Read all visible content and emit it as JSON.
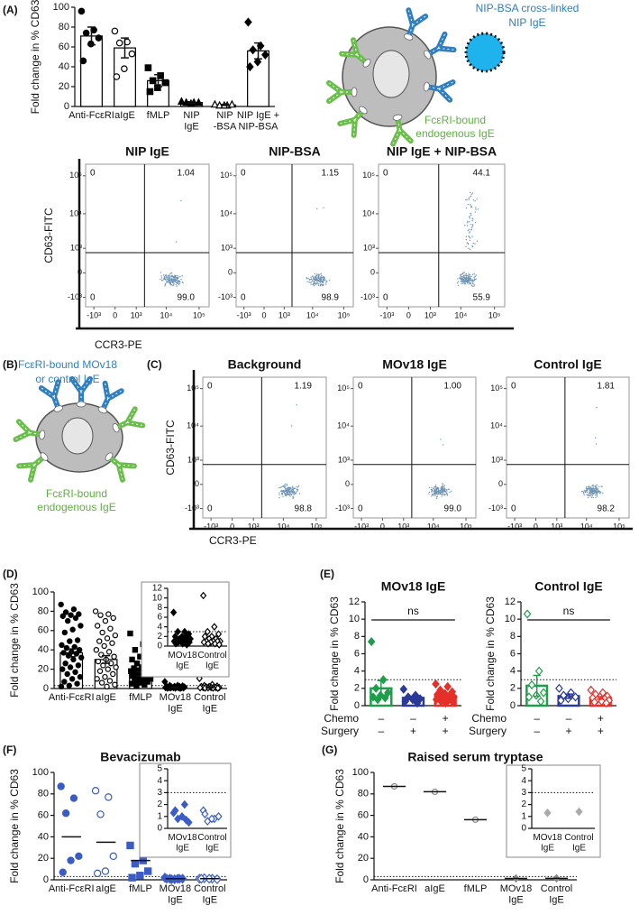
{
  "panel_labels": [
    "(A)",
    "(B)",
    "(C)",
    "(D)",
    "(E)",
    "(F)",
    "(G)"
  ],
  "diagrams": [
    {
      "top": [
        "NIP-BSA cross-linked",
        "NIP IgE"
      ],
      "bottom": [
        "FcεRI-bound",
        "endogenous IgE"
      ]
    },
    {
      "top": [
        "FcεRI-bound MOv18",
        "or control IgE"
      ],
      "bottom": [
        "FcεRI-bound",
        "endogenous IgE"
      ]
    }
  ],
  "chart_data": [
    {
      "type": "bar",
      "ylabel": "Fold change in % CD63",
      "categories": [
        "Anti-FcεRI",
        "aIgE",
        "fMLP",
        "NIP\nIgE",
        "NIP\n-BSA",
        "NIP IgE +\nNIP-BSA"
      ],
      "values": [
        71,
        59,
        26,
        4,
        1.5,
        56
      ],
      "errors": [
        9,
        10,
        6,
        0.8,
        0.5,
        8
      ],
      "points": [
        [
          96,
          77,
          74,
          69,
          63,
          46
        ],
        [
          76,
          65,
          64,
          53,
          38,
          30
        ],
        [
          39,
          31,
          26,
          24,
          19,
          15
        ],
        [
          5,
          4,
          4,
          4,
          3
        ],
        [
          2,
          1,
          1,
          2,
          1
        ],
        [
          85,
          61,
          57,
          52,
          45,
          40
        ]
      ],
      "markers": [
        "circle",
        "circle-open",
        "square",
        "triangle",
        "triangle-open",
        "diamond"
      ],
      "color": "#000000",
      "ylim": [
        0,
        100
      ],
      "yticks": [
        0,
        20,
        40,
        60,
        80,
        100
      ]
    },
    {
      "type": "flow",
      "title": "NIP IgE",
      "ylabel": "CD63-FITC",
      "xlabel": "CCR3-PE",
      "scale": "biexponential",
      "values": [
        0,
        1.04,
        0,
        99
      ],
      "value_labels": [
        "0",
        "1.04",
        "0",
        "99.0"
      ],
      "gates": [
        2000,
        700
      ],
      "xlim": [
        -2000,
        200000
      ],
      "ylim": [
        -2000,
        200000
      ],
      "xticks": [
        {
          "value": -1000,
          "label": "-10³"
        },
        0,
        {
          "value": 1000,
          "label": "10³"
        },
        {
          "value": 10000,
          "label": "10⁴"
        },
        {
          "value": 100000,
          "label": "10⁵"
        }
      ],
      "yticks": [
        {
          "value": -1000,
          "label": "-10³"
        },
        0,
        {
          "value": 1000,
          "label": "10³"
        },
        {
          "value": 10000,
          "label": "10⁴"
        },
        {
          "value": 100000,
          "label": "10⁵"
        }
      ]
    },
    {
      "type": "flow",
      "title": "NIP-BSA",
      "scale": "biexponential",
      "values": [
        0,
        1.15,
        0,
        98.9
      ],
      "value_labels": [
        "0",
        "1.15",
        "0",
        "98.9"
      ],
      "gates": [
        2000,
        700
      ],
      "xlim": [
        -2000,
        200000
      ],
      "ylim": [
        -2000,
        200000
      ],
      "xticks": [
        {
          "value": -1000,
          "label": "-10³"
        },
        0,
        {
          "value": 1000,
          "label": "10³"
        },
        {
          "value": 10000,
          "label": "10⁴"
        },
        {
          "value": 100000,
          "label": "10⁵"
        }
      ],
      "yticks": [
        {
          "value": -1000,
          "label": "-10³"
        },
        0,
        {
          "value": 1000,
          "label": "10³"
        },
        {
          "value": 10000,
          "label": "10⁴"
        },
        {
          "value": 100000,
          "label": "10⁵"
        }
      ]
    },
    {
      "type": "flow",
      "title": "NIP IgE + NIP-BSA",
      "scale": "biexponential",
      "values": [
        0,
        44.1,
        0,
        55.9
      ],
      "value_labels": [
        "0",
        "44.1",
        "0",
        "55.9"
      ],
      "gates": [
        2000,
        700
      ],
      "xlim": [
        -2000,
        200000
      ],
      "ylim": [
        -2000,
        200000
      ],
      "xticks": [
        {
          "value": -1000,
          "label": "-10³"
        },
        0,
        {
          "value": 1000,
          "label": "10³"
        },
        {
          "value": 10000,
          "label": "10⁴"
        },
        {
          "value": 100000,
          "label": "10⁵"
        }
      ],
      "yticks": [
        {
          "value": -1000,
          "label": "-10³"
        },
        0,
        {
          "value": 1000,
          "label": "10³"
        },
        {
          "value": 10000,
          "label": "10⁴"
        },
        {
          "value": 100000,
          "label": "10⁵"
        }
      ]
    },
    {
      "type": "flow",
      "title": "Background",
      "ylabel": "CD63-FITC",
      "xlabel": "CCR3-PE",
      "scale": "biexponential",
      "values": [
        0,
        1.19,
        0,
        98.8
      ],
      "value_labels": [
        "0",
        "1.19",
        "0",
        "98.8"
      ],
      "gates": [
        2000,
        700
      ],
      "xlim": [
        -2000,
        200000
      ],
      "ylim": [
        -2000,
        200000
      ],
      "xticks": [
        {
          "value": -1000,
          "label": "-10³"
        },
        0,
        {
          "value": 1000,
          "label": "10³"
        },
        {
          "value": 10000,
          "label": "10⁴"
        },
        {
          "value": 100000,
          "label": "10⁵"
        }
      ],
      "yticks": [
        {
          "value": -1000,
          "label": "-10³"
        },
        0,
        {
          "value": 1000,
          "label": "10³"
        },
        {
          "value": 10000,
          "label": "10⁴"
        },
        {
          "value": 100000,
          "label": "10⁵"
        }
      ]
    },
    {
      "type": "flow",
      "title": "MOv18 IgE",
      "scale": "biexponential",
      "values": [
        0,
        1,
        0,
        99
      ],
      "value_labels": [
        "0",
        "1.00",
        "0",
        "99.0"
      ],
      "gates": [
        2000,
        700
      ],
      "xlim": [
        -2000,
        200000
      ],
      "ylim": [
        -2000,
        200000
      ],
      "xticks": [
        {
          "value": -1000,
          "label": "-10³"
        },
        0,
        {
          "value": 1000,
          "label": "10³"
        },
        {
          "value": 10000,
          "label": "10⁴"
        },
        {
          "value": 100000,
          "label": "10⁵"
        }
      ],
      "yticks": [
        {
          "value": -1000,
          "label": "-10³"
        },
        0,
        {
          "value": 1000,
          "label": "10³"
        },
        {
          "value": 10000,
          "label": "10⁴"
        },
        {
          "value": 100000,
          "label": "10⁵"
        }
      ]
    },
    {
      "type": "flow",
      "title": "Control IgE",
      "scale": "biexponential",
      "values": [
        0,
        1.81,
        0,
        98.2
      ],
      "value_labels": [
        "0",
        "1.81",
        "0",
        "98.2"
      ],
      "gates": [
        2000,
        700
      ],
      "xlim": [
        -2000,
        200000
      ],
      "ylim": [
        -2000,
        200000
      ],
      "xticks": [
        {
          "value": -1000,
          "label": "-10³"
        },
        0,
        {
          "value": 1000,
          "label": "10³"
        },
        {
          "value": 10000,
          "label": "10⁴"
        },
        {
          "value": 100000,
          "label": "10⁵"
        }
      ],
      "yticks": [
        {
          "value": -1000,
          "label": "-10³"
        },
        0,
        {
          "value": 1000,
          "label": "10³"
        },
        {
          "value": 10000,
          "label": "10⁴"
        },
        {
          "value": 100000,
          "label": "10⁵"
        }
      ]
    },
    {
      "type": "bar",
      "ylabel": "Fold change in % CD63",
      "categories": [
        "Anti-FcεRI",
        "aIgE",
        "fMLP",
        "MOv18\nIgE",
        "Control\nIgE"
      ],
      "values": [
        37,
        30,
        15,
        1.2,
        1.2
      ],
      "errors": [
        4,
        4,
        2,
        0.3,
        0.6
      ],
      "points": [
        [
          87,
          82,
          79,
          77,
          76,
          75,
          73,
          70,
          65,
          61,
          58,
          50,
          49,
          45,
          43,
          42,
          40,
          38,
          37,
          36,
          34,
          32,
          30,
          26,
          24,
          22,
          20,
          17,
          15,
          12,
          10,
          7,
          5,
          3,
          2
        ],
        [
          80,
          77,
          76,
          73,
          70,
          65,
          62,
          58,
          55,
          52,
          49,
          47,
          44,
          40,
          38,
          35,
          33,
          30,
          28,
          26,
          24,
          22,
          20,
          18,
          15,
          12,
          10,
          8,
          6,
          4,
          2
        ],
        [
          57,
          46,
          40,
          35,
          33,
          30,
          28,
          26,
          24,
          22,
          21,
          20,
          19,
          18,
          17,
          16,
          15,
          14,
          13,
          12,
          11,
          10,
          9,
          8,
          7,
          6,
          5,
          4,
          3
        ],
        [
          7,
          3,
          3,
          2.5,
          2,
          2,
          2,
          1.5,
          1.5,
          1.5,
          1,
          1,
          1,
          1,
          1,
          0.8,
          0.8,
          0.5,
          0.5,
          0.3
        ],
        [
          10.5,
          4,
          3,
          2.5,
          2,
          2,
          1.5,
          1.5,
          1,
          1,
          1,
          1,
          0.8,
          0.8,
          0.5,
          0.5,
          0.3
        ]
      ],
      "markers": [
        "circle",
        "circle-open",
        "square",
        "diamond",
        "diamond-open"
      ],
      "color": "#000000",
      "threshold": 3,
      "ylim": [
        0,
        100
      ],
      "yticks": [
        0,
        20,
        40,
        60,
        80,
        100
      ],
      "inset": {
        "type": "dot",
        "categories": [
          "MOv18\nIgE",
          "Control\nIgE"
        ],
        "points": [
          [
            7,
            3,
            3,
            2.5,
            2,
            2,
            2,
            1.5,
            1.5,
            1.5,
            1,
            1,
            1,
            1,
            1,
            0.8,
            0.8,
            0.5,
            0.5,
            0.3
          ],
          [
            10.5,
            4,
            3,
            2.5,
            2,
            2,
            1.5,
            1.5,
            1,
            1,
            1,
            1,
            0.8,
            0.8,
            0.5,
            0.5,
            0.3
          ]
        ],
        "markers": [
          "diamond",
          "diamond-open"
        ],
        "color": "#000000",
        "threshold": 3,
        "ylim": [
          0,
          12
        ],
        "yticks": [
          0,
          2,
          4,
          6,
          8,
          10,
          12
        ]
      }
    },
    {
      "type": "bar",
      "title": "MOv18 IgE",
      "ylabel": "Fold change in % CD63",
      "annotation": "ns",
      "row_labels": [
        "Chemo",
        "Surgery"
      ],
      "rows": [
        [
          "–",
          "–",
          "+"
        ],
        [
          "–",
          "+",
          "+"
        ]
      ],
      "values": [
        2,
        0.9,
        1.1
      ],
      "errors": [
        0.9,
        0.2,
        0.15
      ],
      "points": [
        [
          7.4,
          3,
          2,
          1.5,
          1.2,
          1,
          0.9,
          0.7
        ],
        [
          1.9,
          1.2,
          1,
          0.8,
          0.7,
          0.5,
          0.3
        ],
        [
          2.5,
          2.2,
          1.8,
          1.6,
          1.4,
          1.3,
          1.2,
          1.1,
          1,
          1,
          0.9,
          0.8,
          0.8,
          0.7,
          0.6,
          0.5,
          0.4,
          0.3
        ]
      ],
      "markers": [
        "diamond",
        "diamond",
        "diamond"
      ],
      "colors": [
        "#1e9e4a",
        "#2b3a96",
        "#e5302a"
      ],
      "threshold": 3,
      "ylim": [
        0,
        12
      ],
      "yticks": [
        0,
        2,
        4,
        6,
        8,
        10,
        12
      ]
    },
    {
      "type": "bar",
      "title": "Control IgE",
      "ylabel": "Fold change in % CD63",
      "annotation": "ns",
      "row_labels": [
        "Chemo",
        "Surgery"
      ],
      "rows": [
        [
          "–",
          "–",
          "+"
        ],
        [
          "–",
          "+",
          "+"
        ]
      ],
      "values": [
        2.3,
        1.1,
        0.9
      ],
      "errors": [
        1.2,
        0.25,
        0.15
      ],
      "points": [
        [
          10.6,
          4,
          2.4,
          1.5,
          1.2,
          1,
          0.5
        ],
        [
          2,
          1.5,
          1.2,
          1,
          0.8,
          0.6
        ],
        [
          1.8,
          1.5,
          1.3,
          1.1,
          1,
          0.9,
          0.8,
          0.7,
          0.6,
          0.5,
          0.4,
          0.3
        ]
      ],
      "markers": [
        "diamond-open",
        "diamond-open",
        "diamond-open"
      ],
      "colors": [
        "#1e9e4a",
        "#2b3a96",
        "#e5302a"
      ],
      "threshold": 3,
      "ylim": [
        0,
        12
      ],
      "yticks": [
        0,
        2,
        4,
        6,
        8,
        10,
        12
      ]
    },
    {
      "type": "dot",
      "title": "Bevacizumab",
      "ylabel": "Fold change in % CD63",
      "categories": [
        "Anti-FcεRI",
        "aIgE",
        "fMLP",
        "MOv18\nIgE",
        "Control\nIgE"
      ],
      "values": [
        40,
        35,
        18,
        1,
        1
      ],
      "points": [
        [
          87,
          76,
          62,
          22,
          18,
          7
        ],
        [
          83,
          77,
          61,
          22,
          8,
          6
        ],
        [
          32,
          18,
          15,
          8,
          4,
          2
        ],
        [
          2,
          1,
          1,
          1,
          0.5,
          1,
          1,
          0.5
        ],
        [
          1,
          1,
          1.5,
          0.5,
          1,
          1
        ]
      ],
      "markers": [
        "circle",
        "circle-open",
        "square",
        "diamond",
        "diamond-open"
      ],
      "color": "#3b5cc4",
      "threshold": 3,
      "ylim": [
        0,
        100
      ],
      "yticks": [
        0,
        20,
        40,
        60,
        80,
        100
      ],
      "inset": {
        "type": "dot",
        "categories": [
          "MOv18\nIgE",
          "Control\nIgE"
        ],
        "points": [
          [
            1.3,
            2,
            0.8,
            0.5,
            1,
            1.5,
            0.7
          ],
          [
            1.5,
            0.8,
            0.6,
            1,
            0.8,
            1.2
          ]
        ],
        "markers": [
          "diamond",
          "diamond-open"
        ],
        "color": "#3b5cc4",
        "threshold": 3,
        "ylim": [
          0,
          5
        ],
        "yticks": [
          0,
          1,
          2,
          3,
          4,
          5
        ]
      }
    },
    {
      "type": "dot",
      "title": "Raised serum tryptase",
      "ylabel": "Fold change in % CD63",
      "categories": [
        "Anti-FcεRI",
        "aIgE",
        "fMLP",
        "MOv18\nIgE",
        "Control\nIgE"
      ],
      "values": [
        87,
        82,
        56,
        1.3,
        1.4
      ],
      "points": [
        [
          87
        ],
        [
          82
        ],
        [
          56
        ],
        [
          1.3
        ],
        [
          1.4
        ]
      ],
      "markers": [
        "circle-open",
        "circle-open",
        "circle-open",
        "diamond",
        "diamond"
      ],
      "color": "#888888",
      "threshold": 3,
      "ylim": [
        0,
        100
      ],
      "yticks": [
        0,
        20,
        40,
        60,
        80,
        100
      ],
      "inset": {
        "type": "dot",
        "categories": [
          "MOv18\nIgE",
          "Control\nIgE"
        ],
        "points": [
          [
            1.3
          ],
          [
            1.4
          ]
        ],
        "markers": [
          "diamond",
          "diamond"
        ],
        "color": "#aaaaaa",
        "threshold": 3,
        "ylim": [
          0,
          5
        ],
        "yticks": [
          0,
          1,
          2,
          3,
          4,
          5
        ]
      }
    }
  ]
}
